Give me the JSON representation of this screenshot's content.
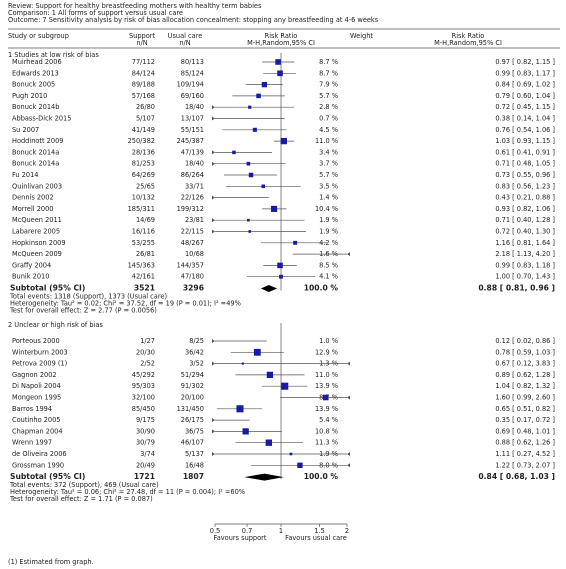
{
  "chart_data": {
    "type": "forest",
    "review": "Review:  Support for healthy breastfeeding mothers with healthy term babies",
    "comparison": "Comparison:  1 All forms of support versus usual care",
    "outcome": "Outcome:  7 Sensitivity analysis by risk of bias allocation concealment: stopping any breastfeeding at 4-6 weeks",
    "columns": {
      "study": "Study or subgroup",
      "support": "Support",
      "support_sub": "n/N",
      "usual": "Usual care",
      "usual_sub": "n/N",
      "plot": "Risk Ratio",
      "plot_sub": "M-H,Random,95% CI",
      "weight": "Weight",
      "ci": "Risk Ratio",
      "ci_sub": "M-H,Random,95% CI"
    },
    "xscale": "log",
    "xlim": [
      0.5,
      2
    ],
    "xticks": [
      0.5,
      0.7,
      1,
      1.5,
      2
    ],
    "square_color": "#1a1aa6",
    "left_label": "Favours support",
    "right_label": "Favours usual care",
    "footnote": "(1) Estimated from graph.",
    "groups": [
      {
        "title": "1 Studies at low risk of bias",
        "studies": [
          {
            "name": "Muirhead 2006",
            "support": "77/112",
            "usual": "80/113",
            "weight": 8.7,
            "weight_label": "8.7 %",
            "rr": 0.97,
            "lo": 0.82,
            "hi": 1.15,
            "ci_label": "0.97 [ 0.82, 1.15 ]"
          },
          {
            "name": "Edwards 2013",
            "support": "84/124",
            "usual": "85/124",
            "weight": 8.7,
            "weight_label": "8.7 %",
            "rr": 0.99,
            "lo": 0.83,
            "hi": 1.17,
            "ci_label": "0.99 [ 0.83, 1.17 ]"
          },
          {
            "name": "Bonuck 2005",
            "support": "89/188",
            "usual": "109/194",
            "weight": 7.9,
            "weight_label": "7.9 %",
            "rr": 0.84,
            "lo": 0.69,
            "hi": 1.02,
            "ci_label": "0.84 [ 0.69, 1.02 ]"
          },
          {
            "name": "Pugh 2010",
            "support": "57/168",
            "usual": "69/160",
            "weight": 5.7,
            "weight_label": "5.7 %",
            "rr": 0.79,
            "lo": 0.6,
            "hi": 1.04,
            "ci_label": "0.79 [ 0.60, 1.04 ]"
          },
          {
            "name": "Bonuck 2014b",
            "support": "26/80",
            "usual": "18/40",
            "weight": 2.8,
            "weight_label": "2.8 %",
            "rr": 0.72,
            "lo": 0.45,
            "hi": 1.15,
            "ci_label": "0.72 [ 0.45, 1.15 ]"
          },
          {
            "name": "Abbass-Dick 2015",
            "support": "5/107",
            "usual": "13/107",
            "weight": 0.7,
            "weight_label": "0.7 %",
            "rr": 0.38,
            "lo": 0.14,
            "hi": 1.04,
            "ci_label": "0.38 [ 0.14, 1.04 ]"
          },
          {
            "name": "Su 2007",
            "support": "41/149",
            "usual": "55/151",
            "weight": 4.5,
            "weight_label": "4.5 %",
            "rr": 0.76,
            "lo": 0.54,
            "hi": 1.06,
            "ci_label": "0.76 [ 0.54, 1.06 ]"
          },
          {
            "name": "Hoddinott 2009",
            "support": "250/382",
            "usual": "245/387",
            "weight": 11.0,
            "weight_label": "11.0 %",
            "rr": 1.03,
            "lo": 0.93,
            "hi": 1.15,
            "ci_label": "1.03 [ 0.93, 1.15 ]"
          },
          {
            "name": "Bonuck 2014a",
            "support": "28/136",
            "usual": "47/139",
            "weight": 3.4,
            "weight_label": "3.4 %",
            "rr": 0.61,
            "lo": 0.41,
            "hi": 0.91,
            "ci_label": "0.61 [ 0.41, 0.91 ]"
          },
          {
            "name": "Bonuck 2014a",
            "support": "81/253",
            "usual": "18/40",
            "weight": 3.7,
            "weight_label": "3.7 %",
            "rr": 0.71,
            "lo": 0.48,
            "hi": 1.05,
            "ci_label": "0.71 [ 0.48, 1.05 ]"
          },
          {
            "name": "Fu 2014",
            "support": "64/269",
            "usual": "86/264",
            "weight": 5.7,
            "weight_label": "5.7 %",
            "rr": 0.73,
            "lo": 0.55,
            "hi": 0.96,
            "ci_label": "0.73 [ 0.55, 0.96 ]"
          },
          {
            "name": "Quinlivan 2003",
            "support": "25/65",
            "usual": "33/71",
            "weight": 3.5,
            "weight_label": "3.5 %",
            "rr": 0.83,
            "lo": 0.56,
            "hi": 1.23,
            "ci_label": "0.83 [ 0.56, 1.23 ]"
          },
          {
            "name": "Dennis 2002",
            "support": "10/132",
            "usual": "22/126",
            "weight": 1.4,
            "weight_label": "1.4 %",
            "rr": 0.43,
            "lo": 0.21,
            "hi": 0.88,
            "ci_label": "0.43 [ 0.21, 0.88 ]"
          },
          {
            "name": "Morrell 2000",
            "support": "185/311",
            "usual": "199/312",
            "weight": 10.4,
            "weight_label": "10.4 %",
            "rr": 0.93,
            "lo": 0.82,
            "hi": 1.06,
            "ci_label": "0.93 [ 0.82, 1.06 ]"
          },
          {
            "name": "McQueen 2011",
            "support": "14/69",
            "usual": "23/81",
            "weight": 1.9,
            "weight_label": "1.9 %",
            "rr": 0.71,
            "lo": 0.4,
            "hi": 1.28,
            "ci_label": "0.71 [ 0.40, 1.28 ]"
          },
          {
            "name": "Labarere 2005",
            "support": "16/116",
            "usual": "22/115",
            "weight": 1.9,
            "weight_label": "1.9 %",
            "rr": 0.72,
            "lo": 0.4,
            "hi": 1.3,
            "ci_label": "0.72 [ 0.40, 1.30 ]"
          },
          {
            "name": "Hopkinson 2009",
            "support": "53/255",
            "usual": "48/267",
            "weight": 4.2,
            "weight_label": "4.2 %",
            "rr": 1.16,
            "lo": 0.81,
            "hi": 1.64,
            "ci_label": "1.16 [ 0.81, 1.64 ]"
          },
          {
            "name": "McQueen 2009",
            "support": "26/81",
            "usual": "10/68",
            "weight": 1.6,
            "weight_label": "1.6 %",
            "rr": 2.18,
            "lo": 1.13,
            "hi": 4.2,
            "ci_label": "2.18 [ 1.13, 4.20 ]"
          },
          {
            "name": "Graffy 2004",
            "support": "145/363",
            "usual": "144/357",
            "weight": 8.5,
            "weight_label": "8.5 %",
            "rr": 0.99,
            "lo": 0.83,
            "hi": 1.18,
            "ci_label": "0.99 [ 0.83, 1.18 ]"
          },
          {
            "name": "Bunik 2010",
            "support": "42/161",
            "usual": "47/180",
            "weight": 4.1,
            "weight_label": "4.1 %",
            "rr": 1.0,
            "lo": 0.7,
            "hi": 1.43,
            "ci_label": "1.00 [ 0.70, 1.43 ]"
          }
        ],
        "subtotal": {
          "name": "Subtotal (95% CI)",
          "support": "3521",
          "usual": "3296",
          "weight": 100.0,
          "weight_label": "100.0 %",
          "rr": 0.88,
          "lo": 0.81,
          "hi": 0.96,
          "ci_label": "0.88 [ 0.81, 0.96 ]"
        },
        "notes": [
          "Total events: 1318 (Support), 1373 (Usual care)",
          "Heterogeneity: Tau² = 0.02; Chi² = 37.52, df = 19 (P = 0.01); I² =49%",
          "Test for overall effect: Z = 2.77 (P = 0.0056)"
        ]
      },
      {
        "title": "2 Unclear or high risk of bias",
        "studies": [
          {
            "name": "Porteous 2000",
            "support": "1/27",
            "usual": "8/25",
            "weight": 1.0,
            "weight_label": "1.0 %",
            "rr": 0.12,
            "lo": 0.02,
            "hi": 0.86,
            "ci_label": "0.12 [ 0.02, 0.86 ]"
          },
          {
            "name": "Winterburn 2003",
            "support": "20/30",
            "usual": "36/42",
            "weight": 12.9,
            "weight_label": "12.9 %",
            "rr": 0.78,
            "lo": 0.59,
            "hi": 1.03,
            "ci_label": "0.78 [ 0.59, 1.03 ]"
          },
          {
            "name": "Petrova 2009 (1)",
            "support": "2/52",
            "usual": "3/52",
            "weight": 1.3,
            "weight_label": "1.3 %",
            "rr": 0.67,
            "lo": 0.12,
            "hi": 3.83,
            "ci_label": "0.67 [ 0.12, 3.83 ]"
          },
          {
            "name": "Gagnon 2002",
            "support": "45/292",
            "usual": "51/294",
            "weight": 11.0,
            "weight_label": "11.0 %",
            "rr": 0.89,
            "lo": 0.62,
            "hi": 1.28,
            "ci_label": "0.89 [ 0.62, 1.28 ]"
          },
          {
            "name": "Di Napoli 2004",
            "support": "95/303",
            "usual": "91/302",
            "weight": 13.9,
            "weight_label": "13.9 %",
            "rr": 1.04,
            "lo": 0.82,
            "hi": 1.32,
            "ci_label": "1.04 [ 0.82, 1.32 ]"
          },
          {
            "name": "Mongeon 1995",
            "support": "32/100",
            "usual": "20/100",
            "weight": 8.7,
            "weight_label": "8.7 %",
            "rr": 1.6,
            "lo": 0.99,
            "hi": 2.6,
            "ci_label": "1.60 [ 0.99, 2.60 ]"
          },
          {
            "name": "Barros 1994",
            "support": "85/450",
            "usual": "131/450",
            "weight": 13.9,
            "weight_label": "13.9 %",
            "rr": 0.65,
            "lo": 0.51,
            "hi": 0.82,
            "ci_label": "0.65 [ 0.51, 0.82 ]"
          },
          {
            "name": "Coutinho 2005",
            "support": "9/175",
            "usual": "26/175",
            "weight": 5.4,
            "weight_label": "5.4 %",
            "rr": 0.35,
            "lo": 0.17,
            "hi": 0.72,
            "ci_label": "0.35 [ 0.17, 0.72 ]"
          },
          {
            "name": "Chapman 2004",
            "support": "30/90",
            "usual": "36/75",
            "weight": 10.8,
            "weight_label": "10.8 %",
            "rr": 0.69,
            "lo": 0.48,
            "hi": 1.01,
            "ci_label": "0.69 [ 0.48, 1.01 ]"
          },
          {
            "name": "Wrenn 1997",
            "support": "30/79",
            "usual": "46/107",
            "weight": 11.3,
            "weight_label": "11.3 %",
            "rr": 0.88,
            "lo": 0.62,
            "hi": 1.26,
            "ci_label": "0.88 [ 0.62, 1.26 ]"
          },
          {
            "name": "de Oliveira 2006",
            "support": "3/74",
            "usual": "5/137",
            "weight": 1.9,
            "weight_label": "1.9 %",
            "rr": 1.11,
            "lo": 0.27,
            "hi": 4.52,
            "ci_label": "1.11 [ 0.27, 4.52 ]"
          },
          {
            "name": "Grossman 1990",
            "support": "20/49",
            "usual": "16/48",
            "weight": 8.0,
            "weight_label": "8.0 %",
            "rr": 1.22,
            "lo": 0.73,
            "hi": 2.07,
            "ci_label": "1.22 [ 0.73, 2.07 ]"
          }
        ],
        "subtotal": {
          "name": "Subtotal (95% CI)",
          "support": "1721",
          "usual": "1807",
          "weight": 100.0,
          "weight_label": "100.0 %",
          "rr": 0.84,
          "lo": 0.68,
          "hi": 1.03,
          "ci_label": "0.84 [ 0.68, 1.03 ]"
        },
        "notes": [
          "Total events: 372 (Support), 469 (Usual care)",
          "Heterogeneity: Tau² = 0.06; Chi² = 27.48, df = 11 (P = 0.004); I² =60%",
          "Test for overall effect: Z = 1.71 (P = 0.087)"
        ]
      }
    ]
  }
}
